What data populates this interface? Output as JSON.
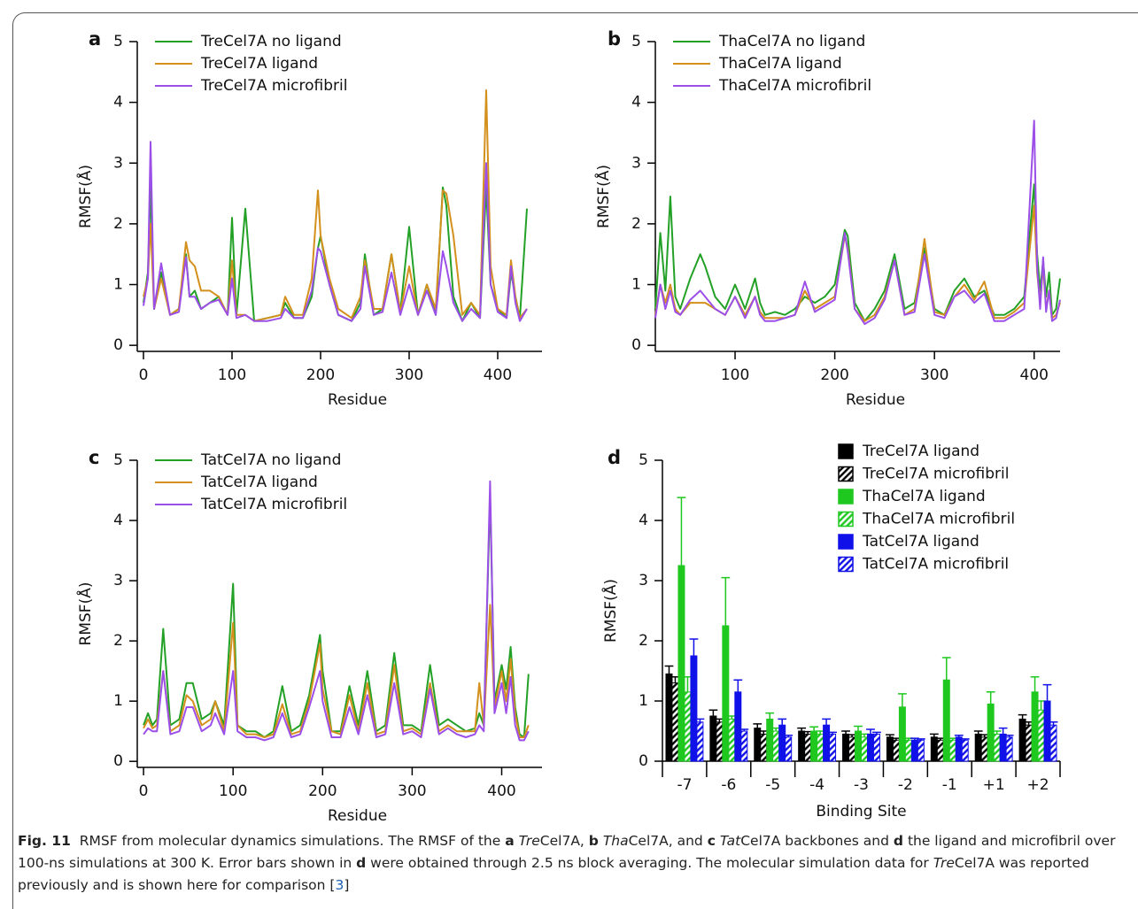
{
  "chart_data": [
    {
      "type": "line",
      "label": "a",
      "ylabel": "RMSF(Å)",
      "xlabel": "Residue",
      "legend": "upper left",
      "xlim": [
        -7,
        450
      ],
      "xticks": [
        0,
        100,
        200,
        300,
        400
      ],
      "ylim": [
        -0.1,
        5
      ],
      "yticks": [
        0,
        1,
        2,
        3,
        4,
        5
      ],
      "x": [
        0,
        5,
        8,
        12,
        20,
        30,
        40,
        48,
        52,
        58,
        65,
        75,
        85,
        95,
        100,
        105,
        115,
        125,
        140,
        155,
        160,
        170,
        180,
        190,
        197,
        200,
        210,
        220,
        235,
        245,
        250,
        260,
        270,
        280,
        290,
        300,
        310,
        320,
        330,
        338,
        342,
        350,
        360,
        370,
        380,
        387,
        392,
        400,
        410,
        415,
        420,
        425,
        433
      ],
      "series": [
        {
          "name": "TreCel7A no ligand",
          "color": "#23a127",
          "values": [
            0.7,
            1.2,
            2.6,
            0.6,
            1.2,
            0.5,
            0.6,
            1.5,
            0.8,
            0.9,
            0.6,
            0.7,
            0.8,
            0.5,
            2.1,
            0.5,
            2.25,
            0.4,
            0.45,
            0.5,
            0.7,
            0.45,
            0.45,
            0.8,
            1.6,
            1.8,
            1.0,
            0.5,
            0.4,
            0.7,
            1.5,
            0.5,
            0.6,
            1.5,
            0.55,
            1.95,
            0.5,
            1.0,
            0.5,
            2.6,
            2.3,
            0.8,
            0.4,
            0.7,
            0.45,
            2.6,
            1.0,
            0.6,
            0.45,
            1.2,
            0.8,
            0.45,
            2.25
          ]
        },
        {
          "name": "TreCel7A ligand",
          "color": "#d4901c",
          "values": [
            0.8,
            1.1,
            2.0,
            0.6,
            1.1,
            0.5,
            0.6,
            1.7,
            1.4,
            1.3,
            0.9,
            0.9,
            0.8,
            0.5,
            1.4,
            0.5,
            0.5,
            0.4,
            0.45,
            0.5,
            0.8,
            0.5,
            0.5,
            1.1,
            2.55,
            1.8,
            1.1,
            0.6,
            0.45,
            0.8,
            1.4,
            0.6,
            0.6,
            1.5,
            0.55,
            1.3,
            0.5,
            1.0,
            0.6,
            2.55,
            2.5,
            1.8,
            0.5,
            0.7,
            0.5,
            4.2,
            1.3,
            0.6,
            0.5,
            1.4,
            0.8,
            0.45,
            0.6
          ]
        },
        {
          "name": "TreCel7A microfibril",
          "color": "#9b4fe8",
          "values": [
            0.65,
            1.1,
            3.35,
            0.6,
            1.35,
            0.5,
            0.55,
            1.45,
            0.8,
            0.8,
            0.6,
            0.7,
            0.75,
            0.5,
            1.1,
            0.45,
            0.5,
            0.4,
            0.4,
            0.45,
            0.6,
            0.45,
            0.45,
            0.9,
            1.6,
            1.55,
            1.0,
            0.5,
            0.4,
            0.6,
            1.3,
            0.5,
            0.55,
            1.2,
            0.5,
            1.0,
            0.5,
            0.9,
            0.5,
            1.55,
            1.3,
            0.7,
            0.4,
            0.6,
            0.45,
            3.0,
            1.0,
            0.55,
            0.45,
            1.3,
            0.7,
            0.4,
            0.6
          ]
        }
      ]
    },
    {
      "type": "line",
      "label": "b",
      "ylabel": "RMSF(Å)",
      "xlabel": "Residue",
      "legend": "upper left",
      "xlim": [
        20,
        426
      ],
      "xticks": [
        100,
        200,
        300,
        400
      ],
      "ylim": [
        -0.1,
        5
      ],
      "yticks": [
        0,
        1,
        2,
        3,
        4,
        5
      ],
      "x": [
        20,
        25,
        30,
        35,
        40,
        45,
        55,
        65,
        70,
        80,
        90,
        100,
        110,
        120,
        125,
        130,
        140,
        150,
        160,
        170,
        180,
        190,
        200,
        210,
        213,
        220,
        230,
        240,
        250,
        260,
        270,
        280,
        290,
        300,
        310,
        320,
        330,
        340,
        350,
        360,
        370,
        380,
        390,
        400,
        403,
        406,
        409,
        412,
        415,
        418,
        422,
        426
      ],
      "series": [
        {
          "name": "ThaCel7A no ligand",
          "color": "#23a127",
          "values": [
            0.6,
            1.85,
            0.9,
            2.45,
            0.8,
            0.6,
            1.1,
            1.5,
            1.3,
            0.8,
            0.6,
            1.0,
            0.6,
            1.1,
            0.7,
            0.5,
            0.55,
            0.5,
            0.6,
            0.8,
            0.7,
            0.8,
            1.0,
            1.9,
            1.8,
            0.7,
            0.4,
            0.6,
            0.9,
            1.5,
            0.6,
            0.7,
            1.6,
            0.6,
            0.5,
            0.9,
            1.1,
            0.8,
            0.9,
            0.5,
            0.5,
            0.6,
            0.8,
            2.65,
            1.5,
            0.9,
            1.4,
            0.8,
            1.2,
            0.5,
            0.6,
            1.1
          ]
        },
        {
          "name": "ThaCel7A ligand",
          "color": "#d4901c",
          "values": [
            0.5,
            1.0,
            0.7,
            1.0,
            0.6,
            0.5,
            0.7,
            0.7,
            0.7,
            0.6,
            0.5,
            0.8,
            0.5,
            0.8,
            0.55,
            0.45,
            0.45,
            0.45,
            0.5,
            0.9,
            0.6,
            0.7,
            0.8,
            1.8,
            1.6,
            0.6,
            0.4,
            0.5,
            0.8,
            1.4,
            0.5,
            0.6,
            1.75,
            0.55,
            0.5,
            0.8,
            1.0,
            0.75,
            1.05,
            0.45,
            0.45,
            0.55,
            0.7,
            2.3,
            1.2,
            0.7,
            1.3,
            0.6,
            0.9,
            0.45,
            0.5,
            0.7
          ]
        },
        {
          "name": "ThaCel7A microfibril",
          "color": "#9b4fe8",
          "values": [
            0.45,
            1.0,
            0.6,
            0.9,
            0.55,
            0.5,
            0.75,
            0.9,
            0.8,
            0.6,
            0.5,
            0.8,
            0.45,
            0.8,
            0.5,
            0.4,
            0.4,
            0.45,
            0.5,
            1.05,
            0.55,
            0.65,
            0.75,
            1.85,
            1.55,
            0.6,
            0.35,
            0.45,
            0.75,
            1.4,
            0.5,
            0.55,
            1.5,
            0.5,
            0.45,
            0.8,
            0.9,
            0.7,
            0.85,
            0.4,
            0.4,
            0.5,
            0.6,
            3.7,
            1.3,
            0.6,
            1.45,
            0.55,
            0.9,
            0.4,
            0.45,
            0.75
          ]
        }
      ]
    },
    {
      "type": "line",
      "label": "c",
      "ylabel": "RMSF(Å)",
      "xlabel": "Residue",
      "legend": "upper left",
      "xlim": [
        -7,
        445
      ],
      "xticks": [
        0,
        100,
        200,
        300,
        400
      ],
      "ylim": [
        -0.1,
        5
      ],
      "yticks": [
        0,
        1,
        2,
        3,
        4,
        5
      ],
      "x": [
        0,
        5,
        10,
        15,
        22,
        30,
        40,
        48,
        55,
        65,
        75,
        80,
        90,
        100,
        105,
        115,
        125,
        135,
        145,
        155,
        165,
        175,
        185,
        197,
        200,
        210,
        220,
        230,
        240,
        250,
        260,
        270,
        280,
        290,
        300,
        310,
        320,
        330,
        340,
        350,
        360,
        370,
        375,
        380,
        387,
        392,
        400,
        405,
        410,
        415,
        420,
        425,
        430
      ],
      "series": [
        {
          "name": "TatCel7A no ligand",
          "color": "#23a127",
          "values": [
            0.6,
            0.8,
            0.6,
            0.7,
            2.2,
            0.6,
            0.7,
            1.3,
            1.3,
            0.7,
            0.8,
            1.0,
            0.6,
            2.95,
            0.6,
            0.5,
            0.5,
            0.4,
            0.5,
            1.25,
            0.5,
            0.6,
            1.1,
            2.1,
            1.5,
            0.5,
            0.5,
            1.25,
            0.6,
            1.5,
            0.5,
            0.6,
            1.8,
            0.6,
            0.6,
            0.5,
            1.6,
            0.6,
            0.7,
            0.6,
            0.5,
            0.55,
            0.8,
            0.6,
            4.4,
            1.0,
            1.6,
            1.2,
            1.9,
            0.9,
            0.45,
            0.4,
            1.45
          ]
        },
        {
          "name": "TatCel7A ligand",
          "color": "#d4901c",
          "values": [
            0.55,
            0.7,
            0.55,
            0.6,
            1.5,
            0.5,
            0.6,
            1.1,
            1.0,
            0.6,
            0.7,
            1.0,
            0.5,
            2.3,
            0.6,
            0.45,
            0.45,
            0.4,
            0.45,
            0.95,
            0.45,
            0.5,
            1.0,
            1.95,
            1.2,
            0.5,
            0.45,
            1.1,
            0.5,
            1.3,
            0.45,
            0.5,
            1.6,
            0.5,
            0.55,
            0.45,
            1.3,
            0.5,
            0.6,
            0.5,
            0.5,
            0.5,
            1.3,
            0.6,
            2.6,
            0.9,
            1.5,
            1.0,
            1.7,
            0.8,
            0.4,
            0.4,
            0.6
          ]
        },
        {
          "name": "TatCel7A microfibril",
          "color": "#9b4fe8",
          "values": [
            0.45,
            0.55,
            0.5,
            0.5,
            1.5,
            0.45,
            0.5,
            0.9,
            0.9,
            0.5,
            0.6,
            0.8,
            0.45,
            1.5,
            0.5,
            0.4,
            0.4,
            0.35,
            0.4,
            0.8,
            0.4,
            0.45,
            0.9,
            1.5,
            1.0,
            0.4,
            0.4,
            0.9,
            0.45,
            1.1,
            0.4,
            0.45,
            1.3,
            0.45,
            0.5,
            0.4,
            1.2,
            0.45,
            0.55,
            0.45,
            0.4,
            0.45,
            0.6,
            0.5,
            4.65,
            0.8,
            1.3,
            0.8,
            1.4,
            0.6,
            0.35,
            0.35,
            0.5
          ]
        }
      ]
    },
    {
      "type": "bar",
      "label": "d",
      "ylabel": "RMSF(Å)",
      "xlabel": "Binding Site",
      "legend": "upper right",
      "ylim": [
        0,
        5
      ],
      "yticks": [
        0,
        1,
        2,
        3,
        4,
        5
      ],
      "categories": [
        "-7",
        "-6",
        "-5",
        "-4",
        "-3",
        "-2",
        "-1",
        "+1",
        "+2"
      ],
      "series": [
        {
          "name": "TreCel7A ligand",
          "color": "#000000",
          "pattern": "solid",
          "values": [
            1.45,
            0.75,
            0.55,
            0.5,
            0.45,
            0.4,
            0.4,
            0.45,
            0.7
          ],
          "errors": [
            0.13,
            0.1,
            0.07,
            0.05,
            0.05,
            0.04,
            0.05,
            0.05,
            0.07
          ]
        },
        {
          "name": "TreCel7A microfibril",
          "color": "#000000",
          "pattern": "hatch",
          "values": [
            1.3,
            0.65,
            0.45,
            0.45,
            0.4,
            0.35,
            0.35,
            0.4,
            0.6
          ],
          "errors": [
            0.1,
            0.05,
            0.05,
            0.04,
            0.04,
            0.03,
            0.03,
            0.04,
            0.05
          ]
        },
        {
          "name": "ThaCel7A ligand",
          "color": "#1ec81e",
          "pattern": "solid",
          "values": [
            3.25,
            2.25,
            0.7,
            0.5,
            0.5,
            0.9,
            1.35,
            0.95,
            1.15
          ],
          "errors": [
            1.13,
            0.8,
            0.1,
            0.07,
            0.08,
            0.22,
            0.37,
            0.2,
            0.25
          ]
        },
        {
          "name": "ThaCel7A microfibril",
          "color": "#1ec81e",
          "pattern": "hatch",
          "values": [
            1.15,
            0.7,
            0.5,
            0.45,
            0.4,
            0.35,
            0.35,
            0.45,
            0.85
          ],
          "errors": [
            0.25,
            0.05,
            0.05,
            0.05,
            0.05,
            0.03,
            0.03,
            0.05,
            0.15
          ]
        },
        {
          "name": "TatCel7A ligand",
          "color": "#1010e8",
          "pattern": "solid",
          "values": [
            1.75,
            1.15,
            0.6,
            0.6,
            0.45,
            0.35,
            0.4,
            0.45,
            1.0
          ],
          "errors": [
            0.28,
            0.2,
            0.1,
            0.1,
            0.08,
            0.03,
            0.03,
            0.1,
            0.27
          ]
        },
        {
          "name": "TatCel7A microfibril",
          "color": "#1010e8",
          "pattern": "hatch",
          "values": [
            0.65,
            0.5,
            0.4,
            0.45,
            0.45,
            0.35,
            0.35,
            0.4,
            0.6
          ],
          "errors": [
            0.05,
            0.03,
            0.03,
            0.03,
            0.03,
            0.02,
            0.02,
            0.03,
            0.05
          ]
        }
      ]
    }
  ],
  "caption": [
    {
      "text": "Fig. 11",
      "bold": true
    },
    {
      "text": "  RMSF from molecular dynamics simulations. The RMSF of the "
    },
    {
      "text": "a",
      "bold": true
    },
    {
      "text": " Tre",
      "italic": true
    },
    {
      "text": "Cel7A, "
    },
    {
      "text": "b",
      "bold": true
    },
    {
      "text": " Tha",
      "italic": true
    },
    {
      "text": "Cel7A, and "
    },
    {
      "text": "c",
      "bold": true
    },
    {
      "text": " Tat",
      "italic": true
    },
    {
      "text": "Cel7A backbones and "
    },
    {
      "text": "d",
      "bold": true
    },
    {
      "text": " the ligand and microfibril over 100-ns simulations at 300 K. Error bars shown in "
    },
    {
      "text": "d",
      "bold": true
    },
    {
      "text": " were obtained through 2.5 ns block averaging. The molecular simulation data for "
    },
    {
      "text": "Tre",
      "italic": true
    },
    {
      "text": "Cel7A was reported previously and is shown here for comparison ["
    },
    {
      "text": "3",
      "link": true
    },
    {
      "text": "]"
    }
  ]
}
